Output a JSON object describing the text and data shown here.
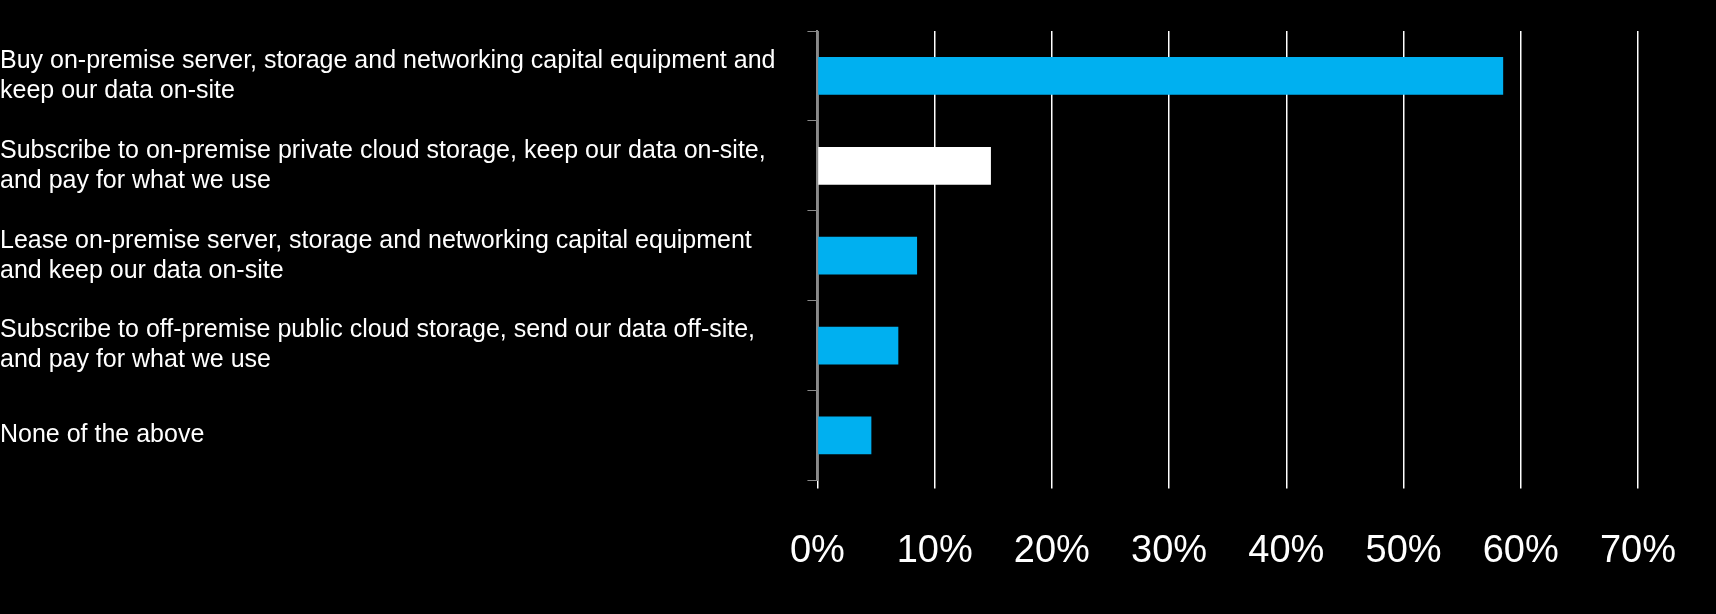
{
  "chart_data": {
    "type": "bar",
    "orientation": "horizontal",
    "categories": [
      "Buy on-premise server, storage and networking capital equipment and keep our data on-site",
      "Subscribe to on-premise private cloud storage, keep our data on-site, and pay for what we use",
      "Lease on-premise server, storage and networking capital equipment and keep our data on-site",
      "Subscribe to off-premise public cloud storage, send our data off-site, and pay for what we use",
      "None of the above"
    ],
    "values": [
      58.5,
      14.8,
      8.5,
      6.9,
      4.6
    ],
    "colors": [
      "#00b0f0",
      "#ffffff",
      "#00b0f0",
      "#00b0f0",
      "#00b0f0"
    ],
    "xlim": [
      0,
      70
    ],
    "xticks": [
      {
        "value": 0,
        "label": "0%"
      },
      {
        "value": 10,
        "label": "10%"
      },
      {
        "value": 20,
        "label": "20%"
      },
      {
        "value": 30,
        "label": "30%"
      },
      {
        "value": 40,
        "label": "40%"
      },
      {
        "value": 50,
        "label": "50%"
      },
      {
        "value": 60,
        "label": "60%"
      },
      {
        "value": 70,
        "label": "70%"
      }
    ],
    "grid": "x",
    "legend": false
  }
}
